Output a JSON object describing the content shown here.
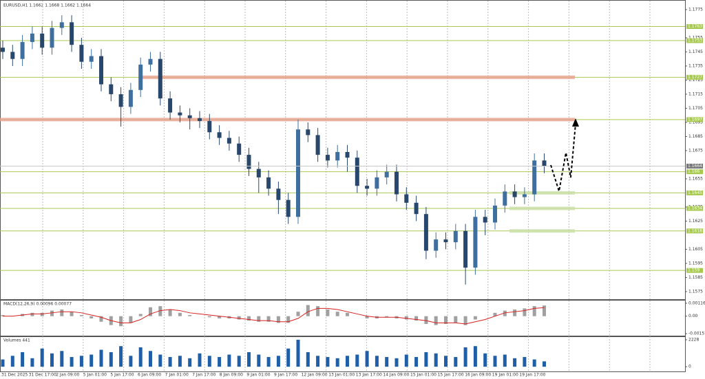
{
  "chart_data": [
    {
      "type": "candlestick",
      "title": "EURUSD,H1  1.1662 1.1668 1.1662 1.1664",
      "categories": [
        "31 Dec 2025",
        "31 Dec 17:00",
        "2 Jan 09:00",
        "5 Jan 01:00",
        "5 Jan 17:00",
        "6 Jan 09:00",
        "7 Jan 01:00",
        "7 Jan 17:00",
        "8 Jan 09:00",
        "9 Jan 01:00",
        "9 Jan 17:00",
        "12 Jan 09:00",
        "13 Jan 01:00",
        "13 Jan 17:00",
        "14 Jan 09:00",
        "15 Jan 01:00",
        "15 Jan 17:00",
        "16 Jan 09:00",
        "19 Jan 01:00",
        "19 Jan 17:00"
      ],
      "candles": {
        "open": [
          1.1748,
          1.1745,
          1.174,
          1.1752,
          1.1758,
          1.1748,
          1.1762,
          1.1766,
          1.175,
          1.1738,
          1.1742,
          1.1722,
          1.1715,
          1.1706,
          1.1718,
          1.1736,
          1.174,
          1.1712,
          1.1702,
          1.17,
          1.1698,
          1.1696,
          1.1688,
          1.1684,
          1.168,
          1.1672,
          1.1662,
          1.1656,
          1.1648,
          1.164,
          1.1628,
          1.169,
          1.1686,
          1.1672,
          1.1668,
          1.1674,
          1.167,
          1.165,
          1.1648,
          1.1656,
          1.166,
          1.1644,
          1.1638,
          1.163,
          1.1604,
          1.1612,
          1.161,
          1.1618,
          1.1592,
          1.1628,
          1.1624,
          1.1636,
          1.1646,
          1.1642,
          1.1644,
          1.1668
        ],
        "high": [
          1.1753,
          1.175,
          1.1757,
          1.1763,
          1.1763,
          1.1767,
          1.1771,
          1.1771,
          1.1755,
          1.1747,
          1.1747,
          1.1727,
          1.172,
          1.1723,
          1.1741,
          1.1745,
          1.1745,
          1.1717,
          1.1707,
          1.1705,
          1.1703,
          1.1701,
          1.1693,
          1.1689,
          1.1685,
          1.1677,
          1.1667,
          1.1661,
          1.1653,
          1.1645,
          1.1697,
          1.1695,
          1.1691,
          1.1677,
          1.1679,
          1.1679,
          1.1675,
          1.1655,
          1.1661,
          1.1665,
          1.1665,
          1.1649,
          1.1643,
          1.1635,
          1.1617,
          1.1617,
          1.1623,
          1.1623,
          1.1633,
          1.1633,
          1.1641,
          1.1651,
          1.1651,
          1.1649,
          1.1673,
          1.1673
        ],
        "low": [
          1.174,
          1.1735,
          1.1735,
          1.1747,
          1.1743,
          1.1743,
          1.1757,
          1.1745,
          1.1733,
          1.1733,
          1.1717,
          1.171,
          1.1692,
          1.1701,
          1.1713,
          1.1731,
          1.1707,
          1.1697,
          1.1695,
          1.169,
          1.1691,
          1.1683,
          1.1679,
          1.1675,
          1.1667,
          1.1657,
          1.1645,
          1.1643,
          1.163,
          1.1623,
          1.1623,
          1.1681,
          1.1667,
          1.1663,
          1.1663,
          1.166,
          1.1645,
          1.1643,
          1.1643,
          1.1651,
          1.1639,
          1.1633,
          1.1625,
          1.1598,
          1.1599,
          1.1605,
          1.1605,
          1.158,
          1.1587,
          1.1615,
          1.1619,
          1.1631,
          1.1637,
          1.1637,
          1.1639,
          1.1659
        ],
        "close": [
          1.1745,
          1.174,
          1.1752,
          1.1758,
          1.1748,
          1.1762,
          1.1766,
          1.175,
          1.1738,
          1.1742,
          1.1722,
          1.1715,
          1.1706,
          1.1718,
          1.1736,
          1.174,
          1.1712,
          1.1702,
          1.17,
          1.1698,
          1.1696,
          1.1688,
          1.1684,
          1.168,
          1.1672,
          1.1662,
          1.1656,
          1.1648,
          1.164,
          1.1628,
          1.169,
          1.1686,
          1.1672,
          1.1668,
          1.1674,
          1.167,
          1.165,
          1.1648,
          1.1656,
          1.166,
          1.1644,
          1.1638,
          1.163,
          1.1604,
          1.1612,
          1.161,
          1.1618,
          1.1592,
          1.1628,
          1.1624,
          1.1636,
          1.1646,
          1.1642,
          1.1644,
          1.1668,
          1.1664
        ]
      },
      "up_color": "#3f6f9f",
      "down_color": "#28476a",
      "ylim": [
        1.15696,
        1.17818
      ],
      "yticks": [
        1.1775,
        1.1755,
        1.1745,
        1.1735,
        1.1725,
        1.1715,
        1.1705,
        1.1695,
        1.1685,
        1.1675,
        1.1655,
        1.1635,
        1.1625,
        1.1605,
        1.1595,
        1.1585,
        1.1575
      ],
      "levels": [
        1.1763,
        1.1753,
        1.1727,
        1.1697,
        1.166,
        1.1645,
        1.1634,
        1.1618,
        1.159
      ],
      "level_color": "#a8c94f",
      "zones": [
        {
          "value": 1.1727,
          "color": "#e9a18f"
        },
        {
          "value": 1.1697,
          "color": "#e9a18f"
        },
        {
          "value": 1.1645,
          "color": "#c9e0a8"
        },
        {
          "value": 1.1634,
          "color": "#c9e0a8"
        },
        {
          "value": 1.1618,
          "color": "#c9e0a8"
        }
      ],
      "current_price": 1.1664
    },
    {
      "type": "bar",
      "title": "MACD(12,26,9) 0.00096 0.00077",
      "color": "#a0a0a0",
      "values": [
        0.0001,
        0.0,
        0.0002,
        0.0003,
        0.0003,
        0.0005,
        0.0006,
        0.0004,
        0.0001,
        -0.0002,
        -0.0005,
        -0.0008,
        -0.0009,
        -0.0006,
        0.0002,
        0.0008,
        0.0009,
        0.0006,
        0.0003,
        0.0001,
        0.0,
        -0.0001,
        -0.0002,
        -0.0002,
        -0.0003,
        -0.0004,
        -0.0005,
        -0.0005,
        -0.0006,
        -0.0006,
        0.0004,
        0.001,
        0.0009,
        0.0006,
        0.0004,
        0.0003,
        0.0,
        -0.0002,
        -0.0002,
        -0.0001,
        -0.0002,
        -0.0003,
        -0.0004,
        -0.0007,
        -0.0008,
        -0.0007,
        -0.0006,
        -0.0008,
        -0.0003,
        0.0,
        0.0003,
        0.0005,
        0.0006,
        0.0007,
        0.0009,
        0.00096
      ],
      "series": [
        {
          "color": "#d81e1e",
          "values": [
            0.0,
            0.0,
            0.0001,
            0.0002,
            0.0002,
            0.0003,
            0.0004,
            0.0004,
            0.0003,
            0.0001,
            -0.0001,
            -0.0004,
            -0.0006,
            -0.0006,
            -0.0003,
            0.0002,
            0.0005,
            0.0006,
            0.0005,
            0.0003,
            0.0002,
            0.0001,
            0.0,
            -0.0001,
            -0.0002,
            -0.0003,
            -0.0004,
            -0.0004,
            -0.0005,
            -0.0005,
            -0.0002,
            0.0004,
            0.0007,
            0.0007,
            0.0006,
            0.0004,
            0.0002,
            0.0,
            -0.0001,
            -0.0001,
            -0.0001,
            -0.0002,
            -0.0003,
            -0.0004,
            -0.0006,
            -0.0006,
            -0.0006,
            -0.0007,
            -0.0005,
            -0.0003,
            0.0,
            0.0003,
            0.0004,
            0.0005,
            0.0007,
            0.00077
          ]
        }
      ],
      "ylim": [
        -0.00175,
        0.0014
      ],
      "yticks": [
        0.00116,
        {
          "value": 0,
          "label": "0.00"
        },
        -0.00157
      ]
    },
    {
      "type": "bar",
      "title": "Volumes 441",
      "color": "#1f5fa8",
      "values": [
        600,
        900,
        1200,
        700,
        1500,
        1100,
        1300,
        800,
        900,
        1000,
        1400,
        1200,
        1700,
        900,
        1600,
        1300,
        1000,
        800,
        900,
        700,
        1100,
        900,
        800,
        1000,
        900,
        1200,
        1000,
        800,
        900,
        1500,
        2228,
        1200,
        900,
        800,
        700,
        900,
        1000,
        1300,
        900,
        800,
        700,
        1000,
        800,
        1200,
        1100,
        900,
        800,
        1600,
        1700,
        1100,
        900,
        1000,
        700,
        800,
        600,
        441
      ],
      "ylim": [
        -390,
        2450
      ],
      "yticks": [
        2228,
        0
      ]
    }
  ]
}
